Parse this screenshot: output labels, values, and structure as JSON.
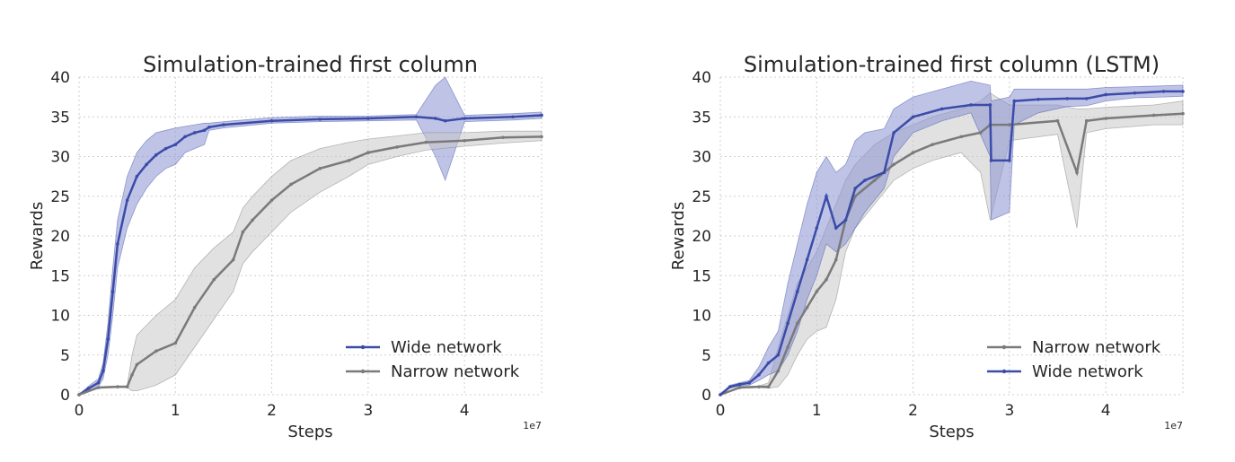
{
  "chart_data": [
    {
      "type": "line",
      "title": "Simulation-trained first column",
      "xlabel": "Steps",
      "ylabel": "Rewards",
      "x_offset_label": "1e7",
      "xlim": [
        0,
        4.8
      ],
      "ylim": [
        0,
        40
      ],
      "xticks": [
        0,
        1,
        2,
        3,
        4
      ],
      "yticks": [
        0,
        5,
        10,
        15,
        20,
        25,
        30,
        35,
        40
      ],
      "grid": true,
      "legend_position": "lower-right",
      "series": [
        {
          "name": "Wide network",
          "color": "#3b4ba8",
          "fill": "#8a93d4",
          "x": [
            0,
            0.1,
            0.2,
            0.25,
            0.3,
            0.35,
            0.4,
            0.5,
            0.6,
            0.7,
            0.8,
            0.9,
            1.0,
            1.1,
            1.2,
            1.3,
            1.35,
            1.5,
            2.0,
            2.5,
            3.0,
            3.5,
            3.7,
            3.8,
            4.0,
            4.5,
            4.8
          ],
          "y": [
            0,
            0.8,
            1.5,
            3,
            7,
            13,
            19,
            24.5,
            27.5,
            29,
            30.2,
            31,
            31.5,
            32.5,
            33,
            33.3,
            33.7,
            34,
            34.5,
            34.7,
            34.8,
            35,
            34.8,
            34.5,
            34.8,
            35,
            35.2
          ],
          "lower": [
            0,
            0.5,
            1,
            2,
            5,
            10,
            16,
            21,
            24,
            26,
            27.5,
            28.5,
            29,
            30.5,
            31,
            31.5,
            33.3,
            33.6,
            34.2,
            34.4,
            34.5,
            34.6,
            30,
            27,
            34.4,
            34.6,
            34.8
          ],
          "upper": [
            0,
            1.1,
            2,
            4,
            9,
            16,
            22,
            27.5,
            30.5,
            32,
            33,
            33.3,
            33.6,
            33.8,
            34,
            34.2,
            34.2,
            34.4,
            34.9,
            35.1,
            35.1,
            35.3,
            39,
            40,
            35.2,
            35.4,
            35.6
          ]
        },
        {
          "name": "Narrow network",
          "color": "#7a7a7a",
          "fill": "#c8c8c8",
          "x": [
            0,
            0.2,
            0.4,
            0.5,
            0.55,
            0.6,
            0.8,
            1.0,
            1.2,
            1.4,
            1.6,
            1.7,
            1.8,
            2.0,
            2.2,
            2.5,
            2.8,
            3.0,
            3.3,
            3.6,
            4.0,
            4.4,
            4.8
          ],
          "y": [
            0,
            0.9,
            1.0,
            1.0,
            2.5,
            3.8,
            5.5,
            6.5,
            11,
            14.5,
            17,
            20.5,
            22,
            24.5,
            26.5,
            28.5,
            29.5,
            30.5,
            31.2,
            31.8,
            32,
            32.4,
            32.5
          ],
          "lower": [
            0,
            0.8,
            0.9,
            0.9,
            0.5,
            0.5,
            1.2,
            2.5,
            6,
            9.5,
            13,
            16.5,
            18,
            20.5,
            23,
            25.5,
            27.5,
            29,
            30,
            30.8,
            31.3,
            31.7,
            32
          ],
          "upper": [
            0,
            1.0,
            1.1,
            1.1,
            5,
            7.5,
            10,
            12,
            16,
            18.5,
            20.5,
            23.5,
            25,
            27.5,
            29.5,
            31,
            31.8,
            32.2,
            32.6,
            33,
            33,
            33.2,
            33.2
          ]
        }
      ]
    },
    {
      "type": "line",
      "title": "Simulation-trained first column (LSTM)",
      "xlabel": "Steps",
      "ylabel": "Rewards",
      "x_offset_label": "1e7",
      "xlim": [
        0,
        4.8
      ],
      "ylim": [
        0,
        40
      ],
      "xticks": [
        0,
        1,
        2,
        3,
        4
      ],
      "yticks": [
        0,
        5,
        10,
        15,
        20,
        25,
        30,
        35,
        40
      ],
      "grid": true,
      "legend_position": "lower-right",
      "series": [
        {
          "name": "Narrow network",
          "color": "#7a7a7a",
          "fill": "#c8c8c8",
          "x": [
            0,
            0.2,
            0.4,
            0.5,
            0.6,
            0.7,
            0.8,
            0.9,
            1.0,
            1.1,
            1.2,
            1.3,
            1.4,
            1.6,
            1.8,
            2.0,
            2.2,
            2.5,
            2.7,
            2.8,
            3.0,
            3.5,
            3.7,
            3.8,
            4.0,
            4.5,
            4.8
          ],
          "y": [
            0,
            0.9,
            1.0,
            1.0,
            3,
            6,
            9,
            11,
            13,
            14.5,
            17,
            22,
            25,
            27,
            29,
            30.5,
            31.5,
            32.5,
            33,
            34,
            34,
            34.5,
            28,
            34.5,
            34.8,
            35.2,
            35.4
          ],
          "lower": [
            0,
            0.8,
            0.9,
            0.8,
            1,
            2.5,
            5,
            7,
            8,
            8.5,
            12,
            18,
            21,
            24,
            27,
            28.5,
            29.5,
            30.5,
            28,
            22,
            32,
            32.8,
            21,
            33,
            33.5,
            34,
            34
          ],
          "upper": [
            0,
            1.0,
            1.1,
            1.5,
            6,
            10,
            14,
            16,
            18,
            21,
            24,
            27,
            29,
            31.5,
            33,
            34,
            35,
            36,
            37,
            38,
            36.5,
            36.5,
            36,
            36,
            36.2,
            36.5,
            37
          ]
        },
        {
          "name": "Wide network",
          "color": "#3b4ba8",
          "fill": "#8a93d4",
          "x": [
            0,
            0.1,
            0.2,
            0.3,
            0.4,
            0.5,
            0.6,
            0.7,
            0.8,
            0.9,
            1.0,
            1.1,
            1.2,
            1.3,
            1.4,
            1.5,
            1.7,
            1.8,
            2.0,
            2.3,
            2.6,
            2.8,
            2.81,
            3.0,
            3.05,
            3.3,
            3.6,
            3.8,
            4.0,
            4.3,
            4.6,
            4.8
          ],
          "y": [
            0,
            1,
            1.3,
            1.5,
            2.5,
            4,
            5,
            9,
            13,
            17,
            21,
            25,
            21,
            22,
            26,
            27,
            28,
            33,
            35,
            36,
            36.5,
            36.5,
            29.5,
            29.5,
            37,
            37.2,
            37.3,
            37.3,
            37.8,
            38,
            38.2,
            38.2
          ],
          "lower": [
            0,
            0.8,
            1.1,
            1.2,
            1.8,
            2.5,
            3,
            5,
            8,
            12,
            15,
            19,
            18,
            19,
            21,
            23,
            26,
            30,
            33,
            34.5,
            35.5,
            30,
            22,
            23,
            34,
            35.5,
            36.3,
            36.4,
            37,
            37.4,
            37.5,
            37.6
          ],
          "upper": [
            0,
            1.2,
            1.5,
            1.8,
            3.5,
            6,
            8,
            14,
            19,
            24,
            28,
            30,
            28,
            29,
            32,
            33,
            33.5,
            36,
            37.5,
            38.5,
            39.5,
            39,
            37,
            37.5,
            38.5,
            38.5,
            38.5,
            38.5,
            38.7,
            38.8,
            38.9,
            39
          ]
        }
      ]
    }
  ]
}
